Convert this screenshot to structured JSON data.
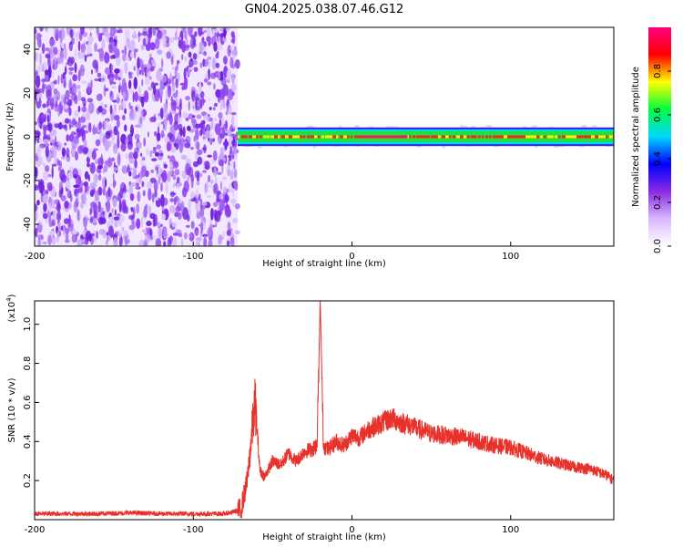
{
  "chart_data": [
    {
      "type": "heatmap",
      "title": "GN04.2025.038.07.46.G12",
      "xlabel": "Height of straight line (km)",
      "ylabel": "Frequency (Hz)",
      "xlim": [
        -200,
        165
      ],
      "ylim": [
        -50,
        50
      ],
      "x_ticks": [
        "-200",
        "-100",
        "0",
        "100"
      ],
      "y_ticks": [
        "40",
        "20",
        "0",
        "-20",
        "-40"
      ],
      "noise_region_x": [
        -200,
        -72
      ],
      "signal_region_x": [
        -72,
        165
      ],
      "signal_frequency_hz": 0,
      "signal_bandwidth_hz": [
        -3,
        3
      ],
      "grid": false,
      "colorbar": {
        "label": "Normalized spectral amplitude",
        "range": [
          0,
          1
        ],
        "ticks": [
          "0.0",
          "0.2",
          "0.4",
          "0.6",
          "0.8"
        ],
        "colors": [
          "#ffffff",
          "#d8b8ff",
          "#8a2be2",
          "#0000ff",
          "#00d8ff",
          "#00ff40",
          "#ffff00",
          "#ff0000",
          "#ff0080"
        ]
      }
    },
    {
      "type": "line",
      "title": "",
      "xlabel": "Height of straight line (km)",
      "ylabel": "SNR (10 * v/v)",
      "multiplier_label": "(x10",
      "multiplier_exponent": "4",
      "multiplier_suffix": ")",
      "xlim": [
        -200,
        165
      ],
      "ylim": [
        0,
        1.12
      ],
      "x_ticks": [
        "-200",
        "-100",
        "0",
        "100"
      ],
      "y_ticks": [
        "1.0",
        "0.8",
        "0.6",
        "0.4",
        "0.2"
      ],
      "series": [
        {
          "color": "#e8312a",
          "x": [
            -200,
            -180,
            -160,
            -140,
            -120,
            -100,
            -80,
            -70,
            -66,
            -63,
            -61,
            -58,
            -55,
            -50,
            -45,
            -40,
            -35,
            -30,
            -25,
            -22,
            -20,
            -18,
            -15,
            -10,
            -5,
            0,
            5,
            10,
            15,
            20,
            25,
            30,
            35,
            40,
            50,
            60,
            70,
            80,
            90,
            100,
            110,
            120,
            130,
            140,
            150,
            160,
            165
          ],
          "values": [
            0.03,
            0.03,
            0.03,
            0.035,
            0.03,
            0.03,
            0.03,
            0.05,
            0.2,
            0.45,
            0.6,
            0.25,
            0.22,
            0.3,
            0.28,
            0.34,
            0.3,
            0.35,
            0.36,
            0.38,
            1.12,
            0.38,
            0.36,
            0.4,
            0.38,
            0.43,
            0.42,
            0.46,
            0.48,
            0.5,
            0.52,
            0.5,
            0.49,
            0.47,
            0.44,
            0.43,
            0.42,
            0.4,
            0.38,
            0.37,
            0.34,
            0.31,
            0.29,
            0.27,
            0.26,
            0.23,
            0.2
          ]
        }
      ]
    }
  ]
}
